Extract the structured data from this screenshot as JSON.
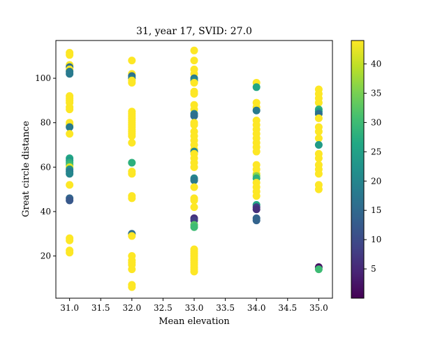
{
  "chart_data": {
    "type": "scatter",
    "title": "31, year 17, SVID: 27.0",
    "xlabel": "Mean elevation",
    "ylabel": "Great circle distance",
    "xlim": [
      30.78,
      35.22
    ],
    "ylim": [
      1,
      117
    ],
    "xticks": [
      "31.0",
      "31.5",
      "32.0",
      "32.5",
      "33.0",
      "33.5",
      "34.0",
      "34.5",
      "35.0"
    ],
    "yticks": [
      "20",
      "40",
      "60",
      "80",
      "100"
    ],
    "colorbar": {
      "colormap": "viridis",
      "range": [
        0,
        44
      ],
      "ticks": [
        "5",
        "10",
        "15",
        "20",
        "25",
        "30",
        "35",
        "40"
      ]
    },
    "points": [
      {
        "x": 31,
        "y": 111.5,
        "c": 44
      },
      {
        "x": 31,
        "y": 110.5,
        "c": 44
      },
      {
        "x": 31,
        "y": 106,
        "c": 44
      },
      {
        "x": 31,
        "y": 105,
        "c": 16
      },
      {
        "x": 31,
        "y": 104,
        "c": 44
      },
      {
        "x": 31,
        "y": 103,
        "c": 18
      },
      {
        "x": 31,
        "y": 102,
        "c": 18
      },
      {
        "x": 31,
        "y": 92,
        "c": 44
      },
      {
        "x": 31,
        "y": 91,
        "c": 44
      },
      {
        "x": 31,
        "y": 90,
        "c": 44
      },
      {
        "x": 31,
        "y": 89,
        "c": 44
      },
      {
        "x": 31,
        "y": 87,
        "c": 44
      },
      {
        "x": 31,
        "y": 86,
        "c": 44
      },
      {
        "x": 31,
        "y": 80,
        "c": 44
      },
      {
        "x": 31,
        "y": 79,
        "c": 44
      },
      {
        "x": 31,
        "y": 78,
        "c": 18
      },
      {
        "x": 31,
        "y": 75,
        "c": 44
      },
      {
        "x": 31,
        "y": 64,
        "c": 26
      },
      {
        "x": 31,
        "y": 63,
        "c": 24
      },
      {
        "x": 31,
        "y": 62,
        "c": 28
      },
      {
        "x": 31,
        "y": 61,
        "c": 30
      },
      {
        "x": 31,
        "y": 60,
        "c": 42
      },
      {
        "x": 31,
        "y": 59,
        "c": 22
      },
      {
        "x": 31,
        "y": 58,
        "c": 18
      },
      {
        "x": 31,
        "y": 57,
        "c": 20
      },
      {
        "x": 31,
        "y": 52,
        "c": 44
      },
      {
        "x": 31,
        "y": 46,
        "c": 14
      },
      {
        "x": 31,
        "y": 45,
        "c": 12
      },
      {
        "x": 31,
        "y": 28,
        "c": 44
      },
      {
        "x": 31,
        "y": 27,
        "c": 44
      },
      {
        "x": 31,
        "y": 22.5,
        "c": 44
      },
      {
        "x": 31,
        "y": 21.5,
        "c": 44
      },
      {
        "x": 32,
        "y": 108,
        "c": 44
      },
      {
        "x": 32,
        "y": 102,
        "c": 44
      },
      {
        "x": 32,
        "y": 101,
        "c": 16
      },
      {
        "x": 32,
        "y": 100,
        "c": 18
      },
      {
        "x": 32,
        "y": 99,
        "c": 44
      },
      {
        "x": 32,
        "y": 98,
        "c": 44
      },
      {
        "x": 32,
        "y": 85,
        "c": 44
      },
      {
        "x": 32,
        "y": 84,
        "c": 44
      },
      {
        "x": 32,
        "y": 83,
        "c": 44
      },
      {
        "x": 32,
        "y": 82,
        "c": 44
      },
      {
        "x": 32,
        "y": 81,
        "c": 44
      },
      {
        "x": 32,
        "y": 80,
        "c": 44
      },
      {
        "x": 32,
        "y": 79,
        "c": 44
      },
      {
        "x": 32,
        "y": 78,
        "c": 44
      },
      {
        "x": 32,
        "y": 77,
        "c": 44
      },
      {
        "x": 32,
        "y": 76,
        "c": 44
      },
      {
        "x": 32,
        "y": 75,
        "c": 44
      },
      {
        "x": 32,
        "y": 74,
        "c": 44
      },
      {
        "x": 32,
        "y": 71,
        "c": 44
      },
      {
        "x": 32,
        "y": 62,
        "c": 28
      },
      {
        "x": 32,
        "y": 58,
        "c": 44
      },
      {
        "x": 32,
        "y": 57,
        "c": 44
      },
      {
        "x": 32,
        "y": 47,
        "c": 44
      },
      {
        "x": 32,
        "y": 46,
        "c": 44
      },
      {
        "x": 32,
        "y": 30,
        "c": 16
      },
      {
        "x": 32,
        "y": 29,
        "c": 44
      },
      {
        "x": 32,
        "y": 20,
        "c": 44
      },
      {
        "x": 32,
        "y": 18,
        "c": 44
      },
      {
        "x": 32,
        "y": 17,
        "c": 44
      },
      {
        "x": 32,
        "y": 16,
        "c": 44
      },
      {
        "x": 32,
        "y": 14,
        "c": 44
      },
      {
        "x": 32,
        "y": 7,
        "c": 44
      },
      {
        "x": 32,
        "y": 6,
        "c": 44
      },
      {
        "x": 33,
        "y": 112.5,
        "c": 44
      },
      {
        "x": 33,
        "y": 108,
        "c": 44
      },
      {
        "x": 33,
        "y": 104,
        "c": 44
      },
      {
        "x": 33,
        "y": 102,
        "c": 44
      },
      {
        "x": 33,
        "y": 100,
        "c": 18
      },
      {
        "x": 33,
        "y": 99,
        "c": 20
      },
      {
        "x": 33,
        "y": 98,
        "c": 44
      },
      {
        "x": 33,
        "y": 94,
        "c": 44
      },
      {
        "x": 33,
        "y": 93,
        "c": 44
      },
      {
        "x": 33,
        "y": 88,
        "c": 44
      },
      {
        "x": 33,
        "y": 86,
        "c": 44
      },
      {
        "x": 33,
        "y": 84,
        "c": 18
      },
      {
        "x": 33,
        "y": 83,
        "c": 16
      },
      {
        "x": 33,
        "y": 80,
        "c": 44
      },
      {
        "x": 33,
        "y": 79,
        "c": 44
      },
      {
        "x": 33,
        "y": 76,
        "c": 44
      },
      {
        "x": 33,
        "y": 74,
        "c": 44
      },
      {
        "x": 33,
        "y": 72,
        "c": 44
      },
      {
        "x": 33,
        "y": 70,
        "c": 44
      },
      {
        "x": 33,
        "y": 68,
        "c": 44
      },
      {
        "x": 33,
        "y": 67,
        "c": 20
      },
      {
        "x": 33,
        "y": 66,
        "c": 44
      },
      {
        "x": 33,
        "y": 64,
        "c": 44
      },
      {
        "x": 33,
        "y": 62,
        "c": 44
      },
      {
        "x": 33,
        "y": 60,
        "c": 44
      },
      {
        "x": 33,
        "y": 55,
        "c": 20
      },
      {
        "x": 33,
        "y": 54,
        "c": 18
      },
      {
        "x": 33,
        "y": 51,
        "c": 44
      },
      {
        "x": 33,
        "y": 46,
        "c": 44
      },
      {
        "x": 33,
        "y": 45,
        "c": 44
      },
      {
        "x": 33,
        "y": 42,
        "c": 44
      },
      {
        "x": 33,
        "y": 37,
        "c": 6
      },
      {
        "x": 33,
        "y": 36,
        "c": 8
      },
      {
        "x": 33,
        "y": 34,
        "c": 32
      },
      {
        "x": 33,
        "y": 33,
        "c": 30
      },
      {
        "x": 33,
        "y": 23,
        "c": 44
      },
      {
        "x": 33,
        "y": 22,
        "c": 44
      },
      {
        "x": 33,
        "y": 21,
        "c": 44
      },
      {
        "x": 33,
        "y": 20,
        "c": 44
      },
      {
        "x": 33,
        "y": 19,
        "c": 44
      },
      {
        "x": 33,
        "y": 18,
        "c": 44
      },
      {
        "x": 33,
        "y": 17,
        "c": 44
      },
      {
        "x": 33,
        "y": 16,
        "c": 44
      },
      {
        "x": 33,
        "y": 15,
        "c": 44
      },
      {
        "x": 33,
        "y": 14,
        "c": 44
      },
      {
        "x": 33,
        "y": 13,
        "c": 44
      },
      {
        "x": 34,
        "y": 98,
        "c": 44
      },
      {
        "x": 34,
        "y": 96,
        "c": 26
      },
      {
        "x": 34,
        "y": 89,
        "c": 44
      },
      {
        "x": 34,
        "y": 87,
        "c": 44
      },
      {
        "x": 34,
        "y": 85.5,
        "c": 18
      },
      {
        "x": 34,
        "y": 81,
        "c": 44
      },
      {
        "x": 34,
        "y": 79,
        "c": 44
      },
      {
        "x": 34,
        "y": 77,
        "c": 44
      },
      {
        "x": 34,
        "y": 75,
        "c": 44
      },
      {
        "x": 34,
        "y": 73,
        "c": 44
      },
      {
        "x": 34,
        "y": 71,
        "c": 44
      },
      {
        "x": 34,
        "y": 69,
        "c": 44
      },
      {
        "x": 34,
        "y": 67,
        "c": 44
      },
      {
        "x": 34,
        "y": 61,
        "c": 44
      },
      {
        "x": 34,
        "y": 59,
        "c": 44
      },
      {
        "x": 34,
        "y": 57,
        "c": 44
      },
      {
        "x": 34,
        "y": 56,
        "c": 36
      },
      {
        "x": 34,
        "y": 55,
        "c": 28
      },
      {
        "x": 34,
        "y": 53,
        "c": 44
      },
      {
        "x": 34,
        "y": 51,
        "c": 44
      },
      {
        "x": 34,
        "y": 49,
        "c": 44
      },
      {
        "x": 34,
        "y": 47,
        "c": 44
      },
      {
        "x": 34,
        "y": 43,
        "c": 26
      },
      {
        "x": 34,
        "y": 42,
        "c": 8
      },
      {
        "x": 34,
        "y": 41,
        "c": 6
      },
      {
        "x": 34,
        "y": 37,
        "c": 14
      },
      {
        "x": 34,
        "y": 36,
        "c": 14
      },
      {
        "x": 35,
        "y": 95,
        "c": 44
      },
      {
        "x": 35,
        "y": 93,
        "c": 44
      },
      {
        "x": 35,
        "y": 91,
        "c": 44
      },
      {
        "x": 35,
        "y": 89,
        "c": 44
      },
      {
        "x": 35,
        "y": 86,
        "c": 28
      },
      {
        "x": 35,
        "y": 85,
        "c": 24
      },
      {
        "x": 35,
        "y": 84,
        "c": 16
      },
      {
        "x": 35,
        "y": 82,
        "c": 44
      },
      {
        "x": 35,
        "y": 78,
        "c": 44
      },
      {
        "x": 35,
        "y": 76,
        "c": 44
      },
      {
        "x": 35,
        "y": 73,
        "c": 44
      },
      {
        "x": 35,
        "y": 70,
        "c": 24
      },
      {
        "x": 35,
        "y": 66,
        "c": 44
      },
      {
        "x": 35,
        "y": 64,
        "c": 44
      },
      {
        "x": 35,
        "y": 61,
        "c": 44
      },
      {
        "x": 35,
        "y": 59,
        "c": 44
      },
      {
        "x": 35,
        "y": 57,
        "c": 44
      },
      {
        "x": 35,
        "y": 52,
        "c": 44
      },
      {
        "x": 35,
        "y": 50,
        "c": 44
      },
      {
        "x": 35,
        "y": 15,
        "c": 2
      },
      {
        "x": 35,
        "y": 14,
        "c": 30
      }
    ]
  }
}
